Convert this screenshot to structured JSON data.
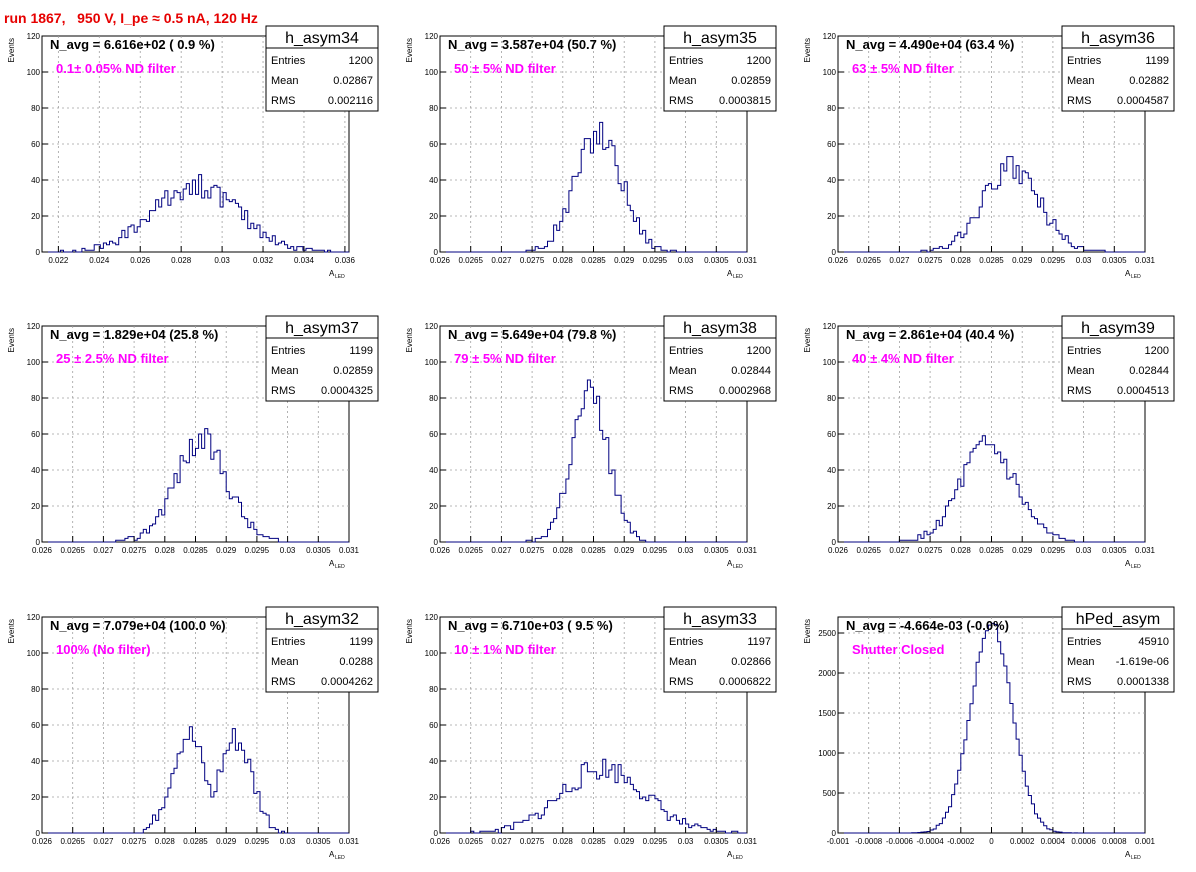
{
  "header": "run 1867,   950 V, I_pe ≈ 0.5 nA, 120 Hz",
  "colors": {
    "hist": "#000080",
    "header": "#e60000",
    "filter_label": "#ff00ff",
    "frame": "#000000",
    "grid": "#a0a0a0"
  },
  "common": {
    "ylabel": "Events",
    "xlabel_main": "A",
    "xlabel_sub": "LED",
    "stat_labels": [
      "Entries",
      "Mean",
      "RMS"
    ]
  },
  "chart_data": [
    {
      "type": "bar",
      "title": "h_asym34",
      "navg": "N_avg = 6.616e+02 ( 0.9 %)",
      "filter": "0.1± 0.05% ND filter",
      "entries": "1200",
      "mean": "0.02867",
      "rms": "0.002116",
      "xlim": [
        0.0212,
        0.0362
      ],
      "xticks": [
        0.022,
        0.024,
        0.026,
        0.028,
        0.03,
        0.032,
        0.034,
        0.036
      ],
      "xticklabels": [
        "0.022",
        "0.024",
        "0.026",
        "0.028",
        "0.03",
        "0.032",
        "0.034",
        "0.036"
      ],
      "ylim": [
        0,
        120
      ],
      "yticks": [
        0,
        20,
        40,
        60,
        80,
        100,
        120
      ],
      "yticklabels": [
        "0",
        "20",
        "40",
        "60",
        "80",
        "100",
        "120"
      ],
      "shape": {
        "kind": "gauss",
        "mu": 0.0287,
        "sigma": 0.0021,
        "peak": 37,
        "bins": 100,
        "seed": 34
      },
      "grid": true
    },
    {
      "type": "bar",
      "title": "h_asym35",
      "navg": "N_avg = 3.587e+04 (50.7 %)",
      "filter": "50 ± 5% ND filter",
      "entries": "1200",
      "mean": "0.02859",
      "rms": "0.0003815",
      "xlim": [
        0.026,
        0.031
      ],
      "xticks": [
        0.026,
        0.0265,
        0.027,
        0.0275,
        0.028,
        0.0285,
        0.029,
        0.0295,
        0.03,
        0.0305,
        0.031
      ],
      "xticklabels": [
        "0.026",
        "0.0265",
        "0.027",
        "0.0275",
        "0.028",
        "0.0285",
        "0.029",
        "0.0295",
        "0.03",
        "0.0305",
        "0.031"
      ],
      "ylim": [
        0,
        120
      ],
      "yticks": [
        0,
        20,
        40,
        60,
        80,
        100,
        120
      ],
      "yticklabels": [
        "0",
        "20",
        "40",
        "60",
        "80",
        "100",
        "120"
      ],
      "shape": {
        "kind": "gauss",
        "mu": 0.02859,
        "sigma": 0.00038,
        "peak": 66,
        "bins": 100,
        "seed": 35
      },
      "grid": true
    },
    {
      "type": "bar",
      "title": "h_asym36",
      "navg": "N_avg = 4.490e+04 (63.4 %)",
      "filter": "63 ± 5% ND filter",
      "entries": "1199",
      "mean": "0.02882",
      "rms": "0.0004587",
      "xlim": [
        0.026,
        0.031
      ],
      "xticks": [
        0.026,
        0.0265,
        0.027,
        0.0275,
        0.028,
        0.0285,
        0.029,
        0.0295,
        0.03,
        0.0305,
        0.031
      ],
      "xticklabels": [
        "0.026",
        "0.0265",
        "0.027",
        "0.0275",
        "0.028",
        "0.0285",
        "0.029",
        "0.0295",
        "0.03",
        "0.0305",
        "0.031"
      ],
      "ylim": [
        0,
        120
      ],
      "yticks": [
        0,
        20,
        40,
        60,
        80,
        100,
        120
      ],
      "yticklabels": [
        "0",
        "20",
        "40",
        "60",
        "80",
        "100",
        "120"
      ],
      "shape": {
        "kind": "gauss",
        "mu": 0.02882,
        "sigma": 0.00046,
        "peak": 46,
        "bins": 100,
        "seed": 36
      },
      "grid": true
    },
    {
      "type": "bar",
      "title": "h_asym37",
      "navg": "N_avg = 1.829e+04 (25.8 %)",
      "filter": "25 ± 2.5% ND filter",
      "entries": "1199",
      "mean": "0.02859",
      "rms": "0.0004325",
      "xlim": [
        0.026,
        0.031
      ],
      "xticks": [
        0.026,
        0.0265,
        0.027,
        0.0275,
        0.028,
        0.0285,
        0.029,
        0.0295,
        0.03,
        0.0305,
        0.031
      ],
      "xticklabels": [
        "0.026",
        "0.0265",
        "0.027",
        "0.0275",
        "0.028",
        "0.0285",
        "0.029",
        "0.0295",
        "0.03",
        "0.0305",
        "0.031"
      ],
      "ylim": [
        0,
        120
      ],
      "yticks": [
        0,
        20,
        40,
        60,
        80,
        100,
        120
      ],
      "yticklabels": [
        "0",
        "20",
        "40",
        "60",
        "80",
        "100",
        "120"
      ],
      "shape": {
        "kind": "gauss",
        "mu": 0.02859,
        "sigma": 0.00043,
        "peak": 56,
        "bins": 100,
        "seed": 37
      },
      "grid": true
    },
    {
      "type": "bar",
      "title": "h_asym38",
      "navg": "N_avg = 5.649e+04 (79.8 %)",
      "filter": "79 ± 5% ND filter",
      "entries": "1200",
      "mean": "0.02844",
      "rms": "0.0002968",
      "xlim": [
        0.026,
        0.031
      ],
      "xticks": [
        0.026,
        0.0265,
        0.027,
        0.0275,
        0.028,
        0.0285,
        0.029,
        0.0295,
        0.03,
        0.0305,
        0.031
      ],
      "xticklabels": [
        "0.026",
        "0.0265",
        "0.027",
        "0.0275",
        "0.028",
        "0.0285",
        "0.029",
        "0.0295",
        "0.03",
        "0.0305",
        "0.031"
      ],
      "ylim": [
        0,
        120
      ],
      "yticks": [
        0,
        20,
        40,
        60,
        80,
        100,
        120
      ],
      "yticklabels": [
        "0",
        "20",
        "40",
        "60",
        "80",
        "100",
        "120"
      ],
      "shape": {
        "kind": "gauss",
        "mu": 0.02844,
        "sigma": 0.0003,
        "peak": 82,
        "bins": 100,
        "seed": 38
      },
      "grid": true
    },
    {
      "type": "bar",
      "title": "h_asym39",
      "navg": "N_avg = 2.861e+04 (40.4 %)",
      "filter": "40 ± 4% ND filter",
      "entries": "1200",
      "mean": "0.02844",
      "rms": "0.0004513",
      "xlim": [
        0.026,
        0.031
      ],
      "xticks": [
        0.026,
        0.0265,
        0.027,
        0.0275,
        0.028,
        0.0285,
        0.029,
        0.0295,
        0.03,
        0.0305,
        0.031
      ],
      "xticklabels": [
        "0.026",
        "0.0265",
        "0.027",
        "0.0275",
        "0.028",
        "0.0285",
        "0.029",
        "0.0295",
        "0.03",
        "0.0305",
        "0.031"
      ],
      "ylim": [
        0,
        120
      ],
      "yticks": [
        0,
        20,
        40,
        60,
        80,
        100,
        120
      ],
      "yticklabels": [
        "0",
        "20",
        "40",
        "60",
        "80",
        "100",
        "120"
      ],
      "shape": {
        "kind": "gauss",
        "mu": 0.02844,
        "sigma": 0.00045,
        "peak": 52,
        "bins": 100,
        "seed": 39
      },
      "grid": true
    },
    {
      "type": "bar",
      "title": "h_asym32",
      "navg": "N_avg = 7.079e+04 (100.0 %)",
      "filter": "100% (No filter)",
      "entries": "1199",
      "mean": "0.0288",
      "rms": "0.0004262",
      "xlim": [
        0.026,
        0.031
      ],
      "xticks": [
        0.026,
        0.0265,
        0.027,
        0.0275,
        0.028,
        0.0285,
        0.029,
        0.0295,
        0.03,
        0.0305,
        0.031
      ],
      "xticklabels": [
        "0.026",
        "0.0265",
        "0.027",
        "0.0275",
        "0.028",
        "0.0285",
        "0.029",
        "0.0295",
        "0.03",
        "0.0305",
        "0.031"
      ],
      "ylim": [
        0,
        120
      ],
      "yticks": [
        0,
        20,
        40,
        60,
        80,
        100,
        120
      ],
      "yticklabels": [
        "0",
        "20",
        "40",
        "60",
        "80",
        "100",
        "120"
      ],
      "shape": {
        "kind": "bimodal",
        "mu": 0.0288,
        "sigma": 0.00042,
        "peak": 55,
        "bins": 100,
        "seed": 32
      },
      "grid": true
    },
    {
      "type": "bar",
      "title": "h_asym33",
      "navg": "N_avg = 6.710e+03 ( 9.5 %)",
      "filter": "10 ± 1% ND filter",
      "entries": "1197",
      "mean": "0.02866",
      "rms": "0.0006822",
      "xlim": [
        0.026,
        0.031
      ],
      "xticks": [
        0.026,
        0.0265,
        0.027,
        0.0275,
        0.028,
        0.0285,
        0.029,
        0.0295,
        0.03,
        0.0305,
        0.031
      ],
      "xticklabels": [
        "0.026",
        "0.0265",
        "0.027",
        "0.0275",
        "0.028",
        "0.0285",
        "0.029",
        "0.0295",
        "0.03",
        "0.0305",
        "0.031"
      ],
      "ylim": [
        0,
        120
      ],
      "yticks": [
        0,
        20,
        40,
        60,
        80,
        100,
        120
      ],
      "yticklabels": [
        "0",
        "20",
        "40",
        "60",
        "80",
        "100",
        "120"
      ],
      "shape": {
        "kind": "gauss",
        "mu": 0.02866,
        "sigma": 0.00068,
        "peak": 36,
        "bins": 100,
        "seed": 33
      },
      "grid": true
    },
    {
      "type": "bar",
      "title": "hPed_asym",
      "navg": "N_avg = -4.664e-03 (-0.0%)",
      "filter": "Shutter Closed",
      "entries": "45910",
      "mean": "-1.619e-06",
      "rms": "0.0001338",
      "xlim": [
        -0.001,
        0.001
      ],
      "xticks": [
        -0.001,
        -0.0008,
        -0.0006,
        -0.0004,
        -0.0002,
        0,
        0.0002,
        0.0004,
        0.0006,
        0.0008,
        0.001
      ],
      "xticklabels": [
        "-0.001",
        "-0.0008",
        "-0.0006",
        "-0.0004",
        "-0.0002",
        "0",
        "0.0002",
        "0.0004",
        "0.0006",
        "0.0008",
        "0.001"
      ],
      "ylim": [
        0,
        2700
      ],
      "yticks": [
        0,
        500,
        1000,
        1500,
        2000,
        2500
      ],
      "yticklabels": [
        "0",
        "500",
        "1000",
        "1500",
        "2000",
        "2500"
      ],
      "shape": {
        "kind": "gauss",
        "mu": 0,
        "sigma": 0.000134,
        "peak": 2620,
        "bins": 100,
        "seed": 40
      },
      "grid": true
    }
  ]
}
